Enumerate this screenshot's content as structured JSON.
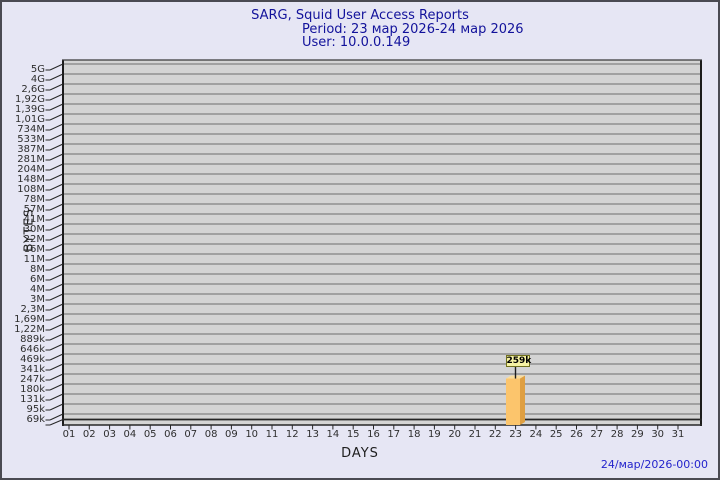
{
  "header": {
    "title": "SARG, Squid User Access Reports",
    "period": "Period: 23 мар 2026-24 мар 2026",
    "user": "User: 10.0.0.149"
  },
  "footer": {
    "generated": "24/мар/2026-00:00"
  },
  "chart_data": {
    "type": "bar",
    "style": "3d-bar",
    "title": "SARG, Squid User Access Reports",
    "subtitle": [
      "Period: 23 мар 2026-24 мар 2026",
      "User: 10.0.0.149"
    ],
    "xlabel": "DAYS",
    "ylabel": "BYTES",
    "y_axis_type": "logarithmic",
    "grid": true,
    "legend_position": "none",
    "y_tick_labels": [
      "5G",
      "4G",
      "2,6G",
      "1,92G",
      "1,39G",
      "1,01G",
      "734M",
      "533M",
      "387M",
      "281M",
      "204M",
      "148M",
      "108M",
      "78M",
      "57M",
      "41M",
      "30M",
      "22M",
      "16M",
      "11M",
      "8M",
      "6M",
      "4M",
      "3M",
      "2,3M",
      "1,69M",
      "1,22M",
      "889k",
      "646k",
      "469k",
      "341k",
      "247k",
      "180k",
      "131k",
      "95k",
      "69k"
    ],
    "x_tick_labels": [
      "01",
      "02",
      "03",
      "04",
      "05",
      "06",
      "07",
      "08",
      "09",
      "10",
      "11",
      "12",
      "13",
      "14",
      "15",
      "16",
      "17",
      "18",
      "19",
      "20",
      "21",
      "22",
      "23",
      "24",
      "25",
      "26",
      "27",
      "28",
      "29",
      "30",
      "31"
    ],
    "bars": [
      {
        "day": "23",
        "value_label": "259k",
        "approx_bytes": 259000
      }
    ],
    "annotations": [
      {
        "text": "259k",
        "attached_to_day": "23"
      }
    ],
    "colors": {
      "background": "#e6e6f4",
      "title_text": "#12129b",
      "footer_text": "#2424cc",
      "axis_text": "#2e2e2e",
      "wall": "#d4d4d4",
      "gridline": "#6e6e6e",
      "edge": "#1c1c1c",
      "bar_front": "#fcc56c",
      "bar_side": "#df9f41",
      "bar_top": "#fadd9c",
      "annotation_bg": "#f6f2a3",
      "annotation_border": "#70701d"
    }
  }
}
